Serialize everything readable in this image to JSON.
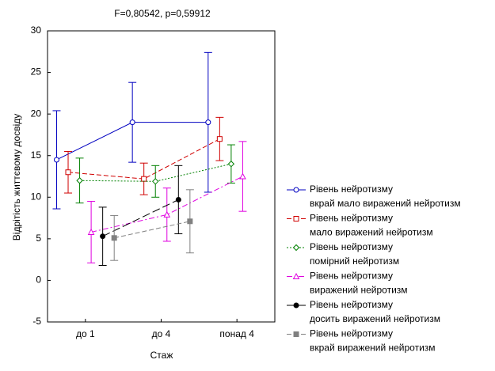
{
  "chart_data": {
    "type": "line",
    "title": "F=0,80542, p=0,59912",
    "x_label": "Стаж",
    "y_label": "Відрітість життєвому досвіду",
    "legend_title": "Рівень нейротизму",
    "categories": [
      "до 1",
      "до 4",
      "понад 4"
    ],
    "ylim": [
      -5,
      30
    ],
    "yticks": [
      -5,
      0,
      5,
      10,
      15,
      20,
      25,
      30
    ],
    "legend": "right",
    "series": [
      {
        "name": "вкрай мало виражений нейротизм",
        "color": "#0000c0",
        "marker": "circle",
        "dash": "solid",
        "values": [
          14.5,
          19,
          19
        ],
        "errors": [
          5.9,
          4.8,
          8.4
        ]
      },
      {
        "name": "мало виражений нейротизм",
        "color": "#d00000",
        "marker": "square",
        "dash": "dashed",
        "values": [
          13,
          12.2,
          17
        ],
        "errors": [
          2.5,
          1.9,
          2.6
        ]
      },
      {
        "name": "помірний нейротизм",
        "color": "#008000",
        "marker": "diamond",
        "dash": "dotted",
        "values": [
          12,
          11.9,
          14
        ],
        "errors": [
          2.7,
          1.9,
          2.3
        ]
      },
      {
        "name": "виражений нейротизм",
        "color": "#e000e0",
        "marker": "triangle",
        "dash": "dashdot",
        "values": [
          5.8,
          7.9,
          12.5
        ],
        "errors": [
          3.7,
          3.2,
          4.2
        ]
      },
      {
        "name": "досить виражений нейротизм",
        "color": "#000000",
        "marker": "filled-circle",
        "dash": "longdash",
        "values": [
          5.3,
          9.7,
          null
        ],
        "errors": [
          3.5,
          4.1,
          null
        ]
      },
      {
        "name": "вкрай виражений нейротизм",
        "color": "#808080",
        "marker": "filled-square",
        "dash": "dashed",
        "values": [
          5.1,
          7.1,
          null
        ],
        "errors": [
          2.7,
          3.8,
          null
        ]
      }
    ]
  }
}
